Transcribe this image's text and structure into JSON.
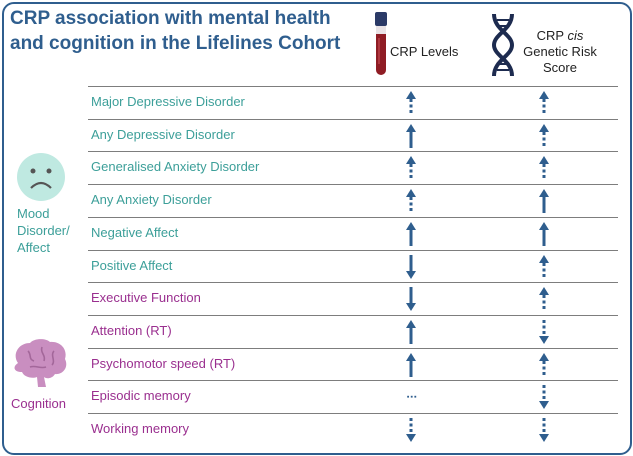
{
  "title_line1": "CRP association with mental health",
  "title_line2": "and cognition in the Lifelines Cohort",
  "columns": {
    "crp_levels": "CRP Levels",
    "genetic_line1_a": "CRP ",
    "genetic_line1_b": "cis",
    "genetic_line2": "Genetic Risk",
    "genetic_line3": "Score"
  },
  "groups": {
    "mood_line1": "Mood",
    "mood_line2": "Disorder/",
    "mood_line3": "Affect",
    "cognition": "Cognition"
  },
  "colors": {
    "mood": "#3c9f99",
    "cognition": "#9a2f8f",
    "arrow": "#2f5e8e",
    "title": "#2f5e8e"
  },
  "rows": [
    {
      "label": "Major Depressive Disorder",
      "group": "mood",
      "crp_levels": "up-dashed",
      "genetic": "up-dashed"
    },
    {
      "label": "Any Depressive Disorder",
      "group": "mood",
      "crp_levels": "up-solid",
      "genetic": "up-dashed"
    },
    {
      "label": "Generalised Anxiety Disorder",
      "group": "mood",
      "crp_levels": "up-dashed",
      "genetic": "up-dashed"
    },
    {
      "label": "Any Anxiety Disorder",
      "group": "mood",
      "crp_levels": "up-dashed",
      "genetic": "up-solid"
    },
    {
      "label": "Negative Affect",
      "group": "mood",
      "crp_levels": "up-solid",
      "genetic": "up-solid"
    },
    {
      "label": "Positive Affect",
      "group": "mood",
      "crp_levels": "down-solid",
      "genetic": "up-dashed"
    },
    {
      "label": "Executive Function",
      "group": "cognition",
      "crp_levels": "down-solid",
      "genetic": "up-dashed"
    },
    {
      "label": "Attention (RT)",
      "group": "cognition",
      "crp_levels": "up-solid",
      "genetic": "down-dashed"
    },
    {
      "label": "Psychomotor speed (RT)",
      "group": "cognition",
      "crp_levels": "up-solid",
      "genetic": "up-dashed"
    },
    {
      "label": "Episodic memory",
      "group": "cognition",
      "crp_levels": "none",
      "genetic": "down-dashed"
    },
    {
      "label": "Working memory",
      "group": "cognition",
      "crp_levels": "down-dashed",
      "genetic": "down-dashed"
    }
  ]
}
